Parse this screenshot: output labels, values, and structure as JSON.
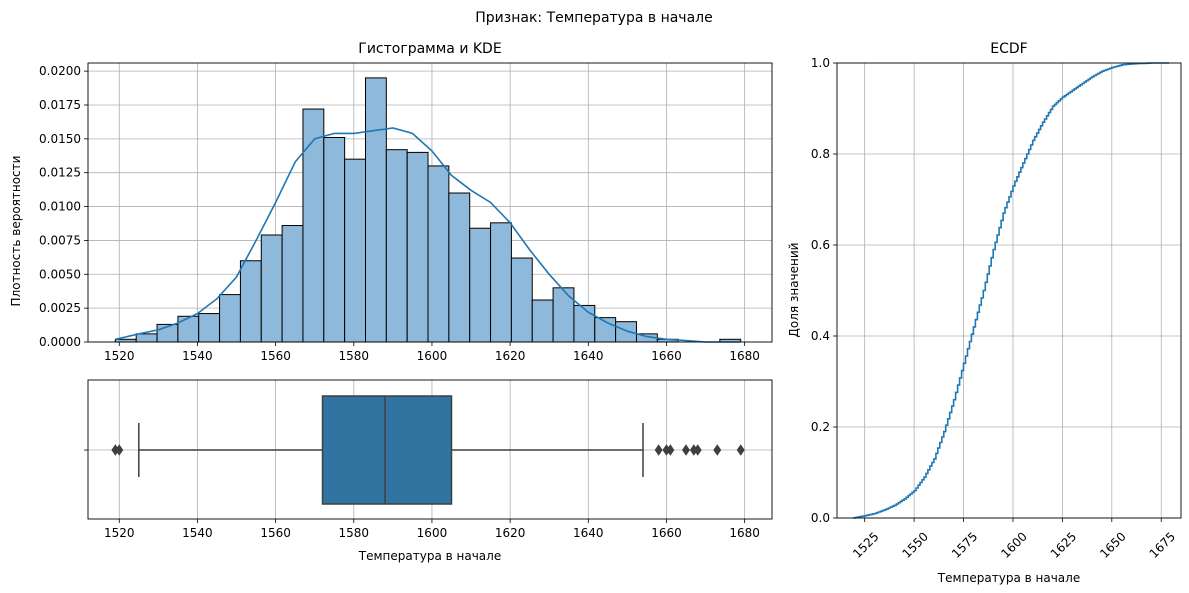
{
  "figure": {
    "suptitle": "Признак: Температура в начале"
  },
  "colors": {
    "hist_fill": "#8fb9da",
    "kde_line": "#1f77b4",
    "box_fill": "#3274a1",
    "box_line": "#3f3f3f",
    "ecdf_line": "#1f77b4",
    "grid": "#b0b0b0"
  },
  "chart_data": [
    {
      "type": "bar",
      "subtype": "histogram_with_kde",
      "title": "Гистограмма и KDE",
      "xlabel": "",
      "ylabel": "Плотность вероятности",
      "xlim": [
        1512,
        1687
      ],
      "ylim": [
        0,
        0.0206
      ],
      "xticks": [
        1520,
        1540,
        1560,
        1580,
        1600,
        1620,
        1640,
        1660,
        1680
      ],
      "yticks": [
        0.0,
        0.0025,
        0.005,
        0.0075,
        0.01,
        0.0125,
        0.015,
        0.0175,
        0.02
      ],
      "ytick_labels": [
        "0.0000",
        "0.0025",
        "0.0050",
        "0.0075",
        "0.0100",
        "0.0125",
        "0.0150",
        "0.0175",
        "0.0200"
      ],
      "grid": true,
      "bin_start": 1519,
      "bin_width": 5.333,
      "values": [
        0.0002,
        0.0006,
        0.0013,
        0.0019,
        0.0021,
        0.0035,
        0.006,
        0.0079,
        0.0086,
        0.0172,
        0.0151,
        0.0135,
        0.0195,
        0.0142,
        0.014,
        0.013,
        0.011,
        0.0084,
        0.0088,
        0.0062,
        0.0031,
        0.004,
        0.0027,
        0.0018,
        0.0015,
        0.0006,
        0.0002,
        0.0,
        0.0,
        0.0002
      ],
      "kde": {
        "x": [
          1519,
          1525,
          1530,
          1535,
          1540,
          1545,
          1550,
          1555,
          1560,
          1565,
          1570,
          1575,
          1580,
          1585,
          1590,
          1595,
          1600,
          1605,
          1610,
          1615,
          1620,
          1625,
          1630,
          1635,
          1640,
          1645,
          1650,
          1655,
          1660,
          1665,
          1670,
          1675,
          1679
        ],
        "y": [
          0.0002,
          0.0006,
          0.0009,
          0.0014,
          0.0021,
          0.0032,
          0.0048,
          0.0075,
          0.0103,
          0.0133,
          0.015,
          0.0154,
          0.0154,
          0.0156,
          0.0158,
          0.0154,
          0.0141,
          0.0123,
          0.0112,
          0.0103,
          0.0088,
          0.0068,
          0.005,
          0.0034,
          0.0022,
          0.0014,
          0.0008,
          0.0004,
          0.0002,
          0.0001,
          0.0,
          0.0,
          0.0
        ]
      }
    },
    {
      "type": "box",
      "xlabel": "Температура в начале",
      "xlim": [
        1512,
        1687
      ],
      "xticks": [
        1520,
        1540,
        1560,
        1580,
        1600,
        1620,
        1640,
        1660,
        1680
      ],
      "grid": true,
      "whisker_low": 1525,
      "q1": 1572,
      "median": 1588,
      "q3": 1605,
      "whisker_high": 1654,
      "outliers": [
        1519,
        1520,
        1658,
        1660,
        1661,
        1665,
        1667,
        1668,
        1673,
        1679
      ]
    },
    {
      "type": "line",
      "subtype": "ecdf",
      "title": "ECDF",
      "xlabel": "Температура в начале",
      "ylabel": "Доля значений",
      "xlim": [
        1511,
        1685
      ],
      "ylim": [
        0,
        1
      ],
      "xticks": [
        1525,
        1550,
        1575,
        1600,
        1625,
        1650,
        1675
      ],
      "yticks": [
        0.0,
        0.2,
        0.4,
        0.6,
        0.8,
        1.0
      ],
      "ytick_labels": [
        "0.0",
        "0.2",
        "0.4",
        "0.6",
        "0.8",
        "1.0"
      ],
      "grid": true,
      "x": [
        1519,
        1525,
        1530,
        1535,
        1540,
        1545,
        1550,
        1555,
        1560,
        1565,
        1570,
        1575,
        1580,
        1585,
        1590,
        1595,
        1600,
        1605,
        1610,
        1615,
        1620,
        1625,
        1630,
        1635,
        1640,
        1645,
        1650,
        1655,
        1660,
        1665,
        1670,
        1679
      ],
      "y": [
        0.0,
        0.005,
        0.01,
        0.018,
        0.028,
        0.042,
        0.06,
        0.09,
        0.13,
        0.19,
        0.26,
        0.34,
        0.42,
        0.5,
        0.59,
        0.67,
        0.73,
        0.78,
        0.83,
        0.87,
        0.905,
        0.925,
        0.94,
        0.955,
        0.97,
        0.982,
        0.99,
        0.996,
        0.998,
        0.999,
        1.0,
        1.0
      ]
    }
  ]
}
